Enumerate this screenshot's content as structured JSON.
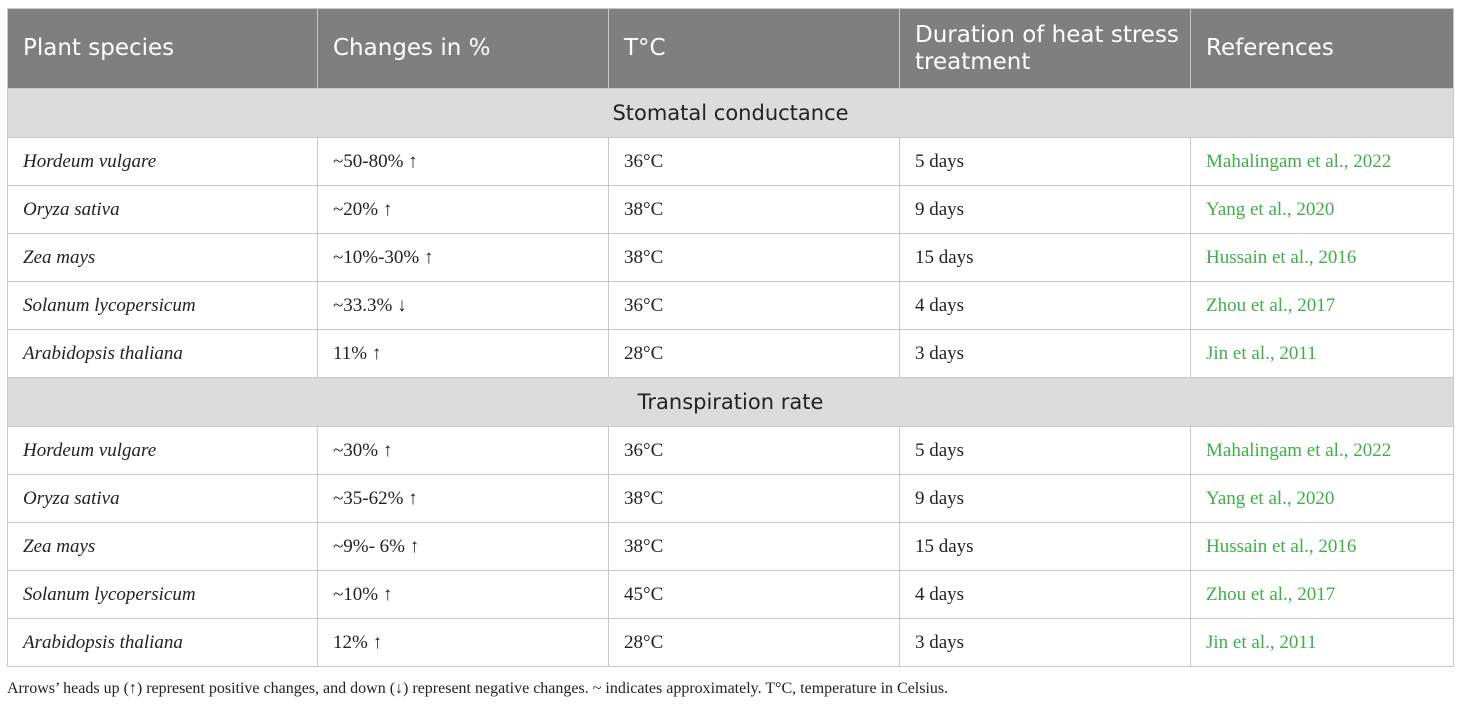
{
  "table": {
    "columns": [
      "Plant species",
      "Changes in %",
      "T°C",
      "Duration of heat stress treatment",
      "References"
    ],
    "sections": [
      {
        "title": "Stomatal conductance",
        "rows": [
          [
            "Hordeum vulgare",
            "~50-80% ↑",
            "36°C",
            "5 days",
            "Mahalingam et al., 2022"
          ],
          [
            "Oryza sativa",
            "~20% ↑",
            "38°C",
            "9 days",
            "Yang et al., 2020"
          ],
          [
            "Zea mays",
            "~10%-30% ↑",
            "38°C",
            "15 days",
            "Hussain et al., 2016"
          ],
          [
            "Solanum lycopersicum",
            "~33.3% ↓",
            "36°C",
            "4 days",
            "Zhou et al., 2017"
          ],
          [
            "Arabidopsis thaliana",
            "11% ↑",
            "28°C",
            "3 days",
            "Jin et al., 2011"
          ]
        ]
      },
      {
        "title": "Transpiration rate",
        "rows": [
          [
            "Hordeum vulgare",
            "~30% ↑",
            "36°C",
            "5 days",
            "Mahalingam et al., 2022"
          ],
          [
            "Oryza sativa",
            "~35-62% ↑",
            "38°C",
            "9 days",
            "Yang et al., 2020"
          ],
          [
            "Zea mays",
            "~9%- 6% ↑",
            "38°C",
            "15 days",
            "Hussain et al., 2016"
          ],
          [
            "Solanum lycopersicum",
            "~10% ↑",
            "45°C",
            "4 days",
            "Zhou et al., 2017"
          ],
          [
            "Arabidopsis thaliana",
            "12% ↑",
            "28°C",
            "3 days",
            "Jin et al., 2011"
          ]
        ]
      }
    ]
  },
  "footnote": "Arrows’ heads up (↑) represent positive changes, and down (↓) represent negative changes. ~ indicates approximately. T°C, temperature in Celsius."
}
